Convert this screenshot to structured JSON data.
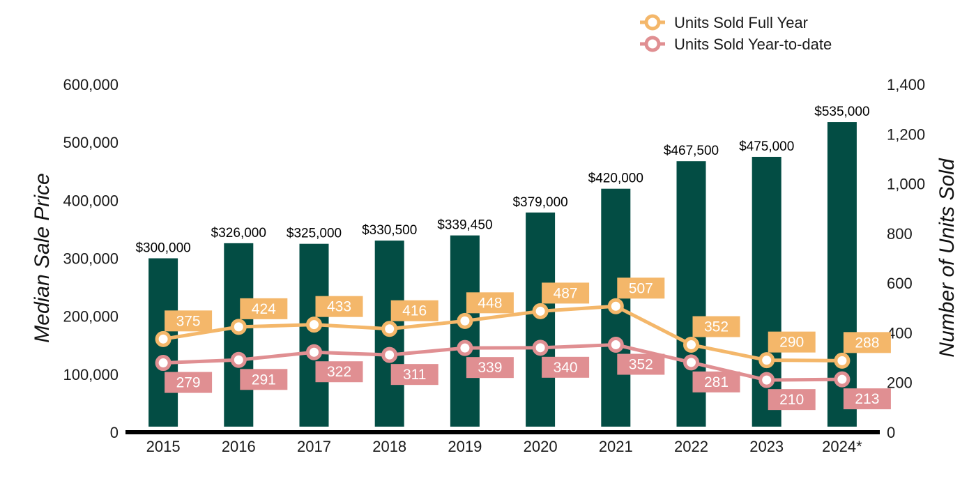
{
  "chart_data": {
    "type": "bar",
    "categories": [
      "2015",
      "2016",
      "2017",
      "2018",
      "2019",
      "2020",
      "2021",
      "2022",
      "2023",
      "2024*"
    ],
    "ylabel": "Median Sale Price",
    "y2label": "Number of Units Sold",
    "ylim": [
      0,
      600000
    ],
    "y2lim": [
      0,
      1400
    ],
    "yticks": [
      "0",
      "100,000",
      "200,000",
      "300,000",
      "400,000",
      "500,000",
      "600,000"
    ],
    "y2ticks": [
      "0",
      "200",
      "400",
      "600",
      "800",
      "1,000",
      "1,200",
      "1,400"
    ],
    "bars": {
      "values": [
        300000,
        326000,
        325000,
        330500,
        339450,
        379000,
        420000,
        467500,
        475000,
        535000
      ],
      "labels": [
        "$300,000",
        "$326,000",
        "$325,000",
        "$330,500",
        "$339,450",
        "$379,000",
        "$420,000",
        "$467,500",
        "$475,000",
        "$535,000"
      ],
      "color": "#034d44"
    },
    "series": [
      {
        "name": "Units Sold Full Year",
        "values": [
          375,
          424,
          433,
          416,
          448,
          487,
          507,
          352,
          290,
          288
        ],
        "color": "#f4b76a",
        "labels": [
          "375",
          "424",
          "433",
          "416",
          "448",
          "487",
          "507",
          "352",
          "290",
          "288"
        ]
      },
      {
        "name": "Units Sold Year-to-date",
        "values": [
          279,
          291,
          322,
          311,
          339,
          340,
          352,
          281,
          210,
          213
        ],
        "color": "#e08f92",
        "labels": [
          "279",
          "291",
          "322",
          "311",
          "339",
          "340",
          "352",
          "281",
          "210",
          "213"
        ]
      }
    ],
    "legend_position": "top-right",
    "grid": false
  }
}
